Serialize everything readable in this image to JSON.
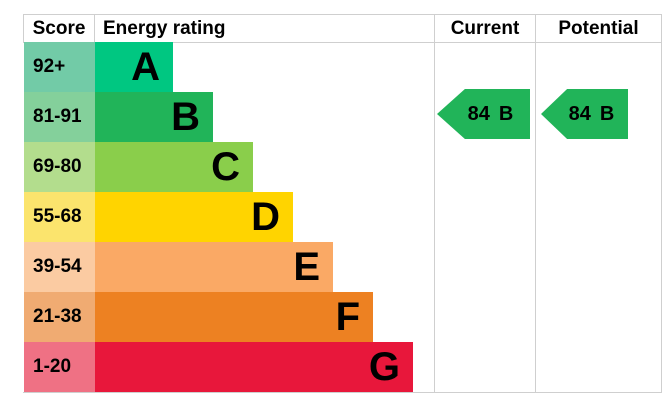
{
  "header": {
    "score": "Score",
    "energy_rating": "Energy rating",
    "current": "Current",
    "potential": "Potential"
  },
  "bands": [
    {
      "score": "92+",
      "letter": "A",
      "color": "#00c781",
      "tint": "#72cba7"
    },
    {
      "score": "81-91",
      "letter": "B",
      "color": "#21b459",
      "tint": "#84d09b"
    },
    {
      "score": "69-80",
      "letter": "C",
      "color": "#8ace4b",
      "tint": "#b3dd8d"
    },
    {
      "score": "55-68",
      "letter": "D",
      "color": "#ffd400",
      "tint": "#fbe46d"
    },
    {
      "score": "39-54",
      "letter": "E",
      "color": "#faa965",
      "tint": "#fbcba2"
    },
    {
      "score": "21-38",
      "letter": "F",
      "color": "#ed8122",
      "tint": "#f0ab72"
    },
    {
      "score": "1-20",
      "letter": "G",
      "color": "#e8173b",
      "tint": "#ef7184"
    }
  ],
  "current": {
    "value": "84",
    "letter": "B",
    "color": "#21b459"
  },
  "potential": {
    "value": "84",
    "letter": "B",
    "color": "#21b459"
  },
  "colors": {
    "grid_line": "#cfcfcf",
    "text": "#000000",
    "background": "#ffffff"
  },
  "chart_data": {
    "type": "bar",
    "title": "Energy rating",
    "columns": [
      "Score",
      "Energy rating",
      "Current",
      "Potential"
    ],
    "categories": [
      "A",
      "B",
      "C",
      "D",
      "E",
      "F",
      "G"
    ],
    "score_ranges": [
      "92+",
      "81-91",
      "69-80",
      "55-68",
      "39-54",
      "21-38",
      "1-20"
    ],
    "bar_colors": [
      "#00c781",
      "#21b459",
      "#8ace4b",
      "#ffd400",
      "#faa965",
      "#ed8122",
      "#e8173b"
    ],
    "bar_relative_lengths": [
      1,
      2,
      3,
      4,
      5,
      6,
      7
    ],
    "current_rating": {
      "score": 84,
      "band": "B"
    },
    "potential_rating": {
      "score": 84,
      "band": "B"
    },
    "legend": "none",
    "grid": "off",
    "orientation": "horizontal"
  }
}
